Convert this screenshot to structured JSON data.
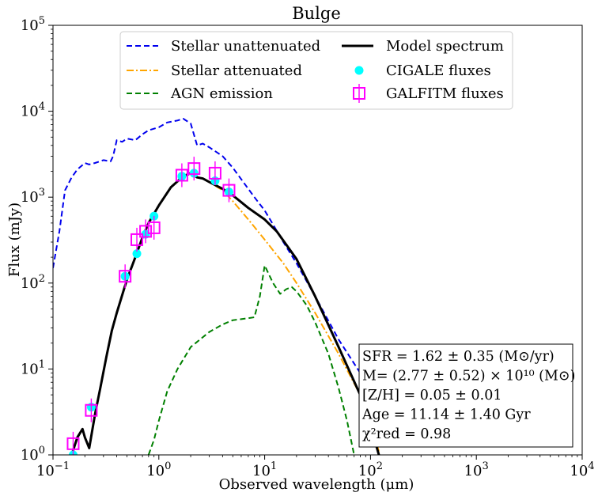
{
  "chart_data": {
    "type": "line",
    "title": "Bulge",
    "xlabel": "Observed wavelength (μm)",
    "ylabel": "Flux (mJy)",
    "xscale": "log",
    "yscale": "log",
    "xlim": [
      0.1,
      10000
    ],
    "ylim": [
      1,
      100000
    ],
    "x_ticks": [
      {
        "value": 0.1,
        "base": "10",
        "exp": "−1"
      },
      {
        "value": 1,
        "base": "10",
        "exp": "0"
      },
      {
        "value": 10,
        "base": "10",
        "exp": "1"
      },
      {
        "value": 100,
        "base": "10",
        "exp": "2"
      },
      {
        "value": 1000,
        "base": "10",
        "exp": "3"
      },
      {
        "value": 10000,
        "base": "10",
        "exp": "4"
      }
    ],
    "y_ticks": [
      {
        "value": 1,
        "base": "10",
        "exp": "0"
      },
      {
        "value": 10,
        "base": "10",
        "exp": "1"
      },
      {
        "value": 100,
        "base": "10",
        "exp": "2"
      },
      {
        "value": 1000,
        "base": "10",
        "exp": "3"
      },
      {
        "value": 10000,
        "base": "10",
        "exp": "4"
      },
      {
        "value": 100000,
        "base": "10",
        "exp": "5"
      }
    ],
    "legend_position": "upper-center",
    "series": [
      {
        "name": "Stellar unattenuated",
        "kind": "line",
        "color": "#0000ee",
        "style": "dashed",
        "x": [
          0.1,
          0.115,
          0.13,
          0.15,
          0.17,
          0.2,
          0.22,
          0.25,
          0.3,
          0.35,
          0.37,
          0.4,
          0.45,
          0.5,
          0.6,
          0.7,
          0.8,
          1.0,
          1.2,
          1.5,
          1.7,
          2.0,
          2.3,
          2.6,
          3.0,
          4.0,
          5.0,
          8.0,
          10,
          12,
          15,
          20,
          30,
          50,
          80,
          100,
          120
        ],
        "y": [
          150,
          400,
          1200,
          1700,
          2100,
          2500,
          2400,
          2500,
          2700,
          2600,
          3000,
          4600,
          4400,
          4800,
          4600,
          5400,
          6000,
          6500,
          7400,
          7800,
          8200,
          7200,
          4000,
          4200,
          3800,
          3000,
          2200,
          1000,
          700,
          480,
          300,
          170,
          70,
          22,
          9,
          5.5,
          3
        ]
      },
      {
        "name": "Stellar attenuated",
        "kind": "line",
        "color": "#ffa500",
        "style": "dashdot",
        "x": [
          0.15,
          0.17,
          0.19,
          0.2,
          0.22,
          0.25,
          0.28,
          0.32,
          0.36,
          0.4,
          0.5,
          0.6,
          0.7,
          0.8,
          1.0,
          1.3,
          1.7,
          2.0,
          2.3,
          2.6,
          3.0,
          4.0,
          5.0,
          7.0,
          10,
          15,
          20,
          30,
          50,
          80,
          100,
          120
        ],
        "y": [
          1.0,
          1.6,
          2.0,
          1.6,
          1.2,
          3.0,
          6.0,
          14,
          28,
          45,
          110,
          200,
          340,
          500,
          800,
          1300,
          1750,
          1900,
          1700,
          1650,
          1500,
          1200,
          900,
          550,
          320,
          170,
          100,
          45,
          15,
          5,
          2.5,
          1.1
        ]
      },
      {
        "name": "AGN emission",
        "kind": "line",
        "color": "#008000",
        "style": "dashed",
        "x": [
          0.8,
          0.9,
          1.0,
          1.2,
          1.5,
          2.0,
          3.0,
          4.0,
          5.0,
          6.0,
          7.0,
          8.0,
          9.0,
          10,
          12,
          14,
          16,
          18,
          20,
          25,
          30,
          40,
          50,
          60,
          70
        ],
        "y": [
          1.0,
          1.5,
          2.5,
          5.5,
          10,
          18,
          27,
          33,
          37,
          38,
          39,
          40,
          70,
          160,
          100,
          75,
          85,
          90,
          80,
          55,
          35,
          15,
          6,
          2.5,
          1
        ]
      },
      {
        "name": "Model spectrum",
        "kind": "line",
        "color": "#000000",
        "style": "solid",
        "x": [
          0.15,
          0.17,
          0.19,
          0.2,
          0.22,
          0.25,
          0.28,
          0.32,
          0.36,
          0.4,
          0.5,
          0.6,
          0.7,
          0.8,
          1.0,
          1.3,
          1.7,
          2.0,
          2.3,
          2.6,
          3.0,
          4.0,
          5.0,
          7.0,
          10,
          13,
          16,
          20,
          30,
          50,
          80,
          100,
          120
        ],
        "y": [
          1.0,
          1.6,
          2.0,
          1.6,
          1.2,
          3.0,
          6.0,
          14,
          28,
          45,
          110,
          200,
          340,
          500,
          800,
          1300,
          1750,
          1900,
          1700,
          1650,
          1500,
          1250,
          1050,
          750,
          550,
          400,
          280,
          190,
          70,
          18,
          5,
          2.2,
          1.0
        ]
      },
      {
        "name": "CIGALE fluxes",
        "kind": "scatter",
        "color": "#00ffff",
        "marker": "circle",
        "x": [
          0.155,
          0.23,
          0.48,
          0.62,
          0.75,
          0.9,
          1.65,
          2.15,
          3.4,
          4.6
        ],
        "y": [
          1.0,
          3.6,
          120,
          220,
          370,
          600,
          1750,
          1900,
          1550,
          1150
        ]
      },
      {
        "name": "GALFITM fluxes",
        "kind": "scatter",
        "color": "#ff00ff",
        "marker": "square-open",
        "x": [
          0.155,
          0.23,
          0.48,
          0.62,
          0.75,
          0.9,
          1.65,
          2.15,
          3.4,
          4.6
        ],
        "y": [
          1.35,
          3.3,
          120,
          320,
          400,
          440,
          1800,
          2150,
          1900,
          1200
        ]
      }
    ],
    "annotation": {
      "position": "lower-right",
      "lines": [
        {
          "key": "sfr",
          "text": "SFR = 1.62 ± 0.35 (M⊙/yr)"
        },
        {
          "key": "mass",
          "text": "M= (2.77 ± 0.52) × 10¹⁰ (M⊙)"
        },
        {
          "key": "metal",
          "text": "[Z/H] = 0.05 ± 0.01"
        },
        {
          "key": "age",
          "text": "Age = 11.14 ± 1.40 Gyr"
        },
        {
          "key": "chi",
          "text": "χ²red = 0.98"
        }
      ]
    }
  }
}
